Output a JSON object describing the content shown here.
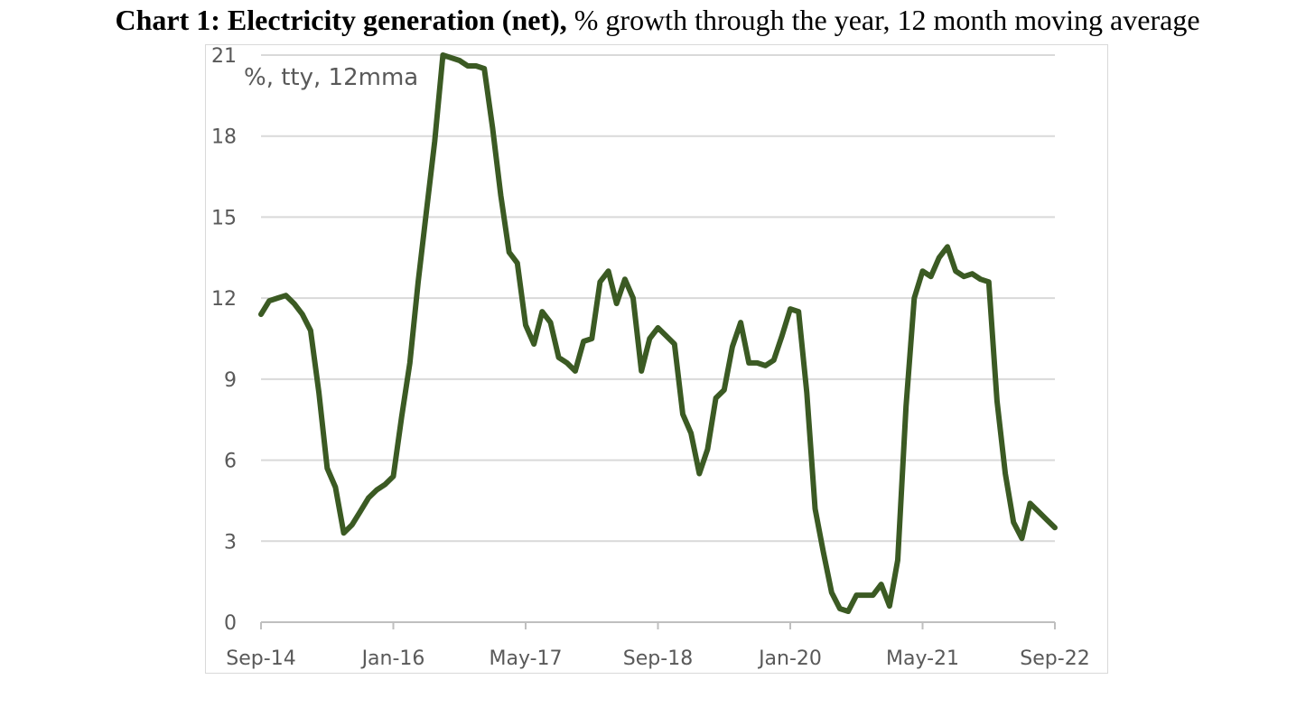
{
  "header": {
    "title_bold": "Chart 1: Electricity generation (net),",
    "title_rest": "% growth through the year, 12 month moving average"
  },
  "chart_data": {
    "type": "line",
    "title": "Chart 1: Electricity generation (net), % growth through the year, 12 month moving average",
    "unit_label": "%, tty, 12mma",
    "x_tick_labels": [
      "Sep-14",
      "Jan-16",
      "May-17",
      "Sep-18",
      "Jan-20",
      "May-21",
      "Sep-22"
    ],
    "x_tick_dates": [
      "2014-09",
      "2016-01",
      "2017-05",
      "2018-09",
      "2020-01",
      "2021-05",
      "2022-09"
    ],
    "y_ticks": [
      0,
      3,
      6,
      9,
      12,
      15,
      18,
      21
    ],
    "ylim": [
      0,
      21
    ],
    "xlim": [
      "2014-09",
      "2022-09"
    ],
    "grid": "horizontal",
    "line_color": "#3b5a23",
    "series": [
      {
        "x": [
          "2014-09",
          "2014-10",
          "2014-11",
          "2014-12",
          "2015-01",
          "2015-02",
          "2015-03",
          "2015-04",
          "2015-05",
          "2015-06",
          "2015-07",
          "2015-08",
          "2015-09",
          "2015-10",
          "2015-11",
          "2015-12",
          "2016-01",
          "2016-02",
          "2016-03",
          "2016-04",
          "2016-05",
          "2016-06",
          "2016-07",
          "2016-08",
          "2016-09",
          "2016-10",
          "2016-11",
          "2016-12",
          "2017-01",
          "2017-02",
          "2017-03",
          "2017-04",
          "2017-05",
          "2017-06",
          "2017-07",
          "2017-08",
          "2017-09",
          "2017-10",
          "2017-11",
          "2017-12",
          "2018-01",
          "2018-02",
          "2018-03",
          "2018-04",
          "2018-05",
          "2018-06",
          "2018-07",
          "2018-08",
          "2018-09",
          "2018-10",
          "2018-11",
          "2018-12",
          "2019-01",
          "2019-02",
          "2019-03",
          "2019-04",
          "2019-05",
          "2019-06",
          "2019-07",
          "2019-08",
          "2019-09",
          "2019-10",
          "2019-11",
          "2019-12",
          "2020-01",
          "2020-02",
          "2020-03",
          "2020-04",
          "2020-05",
          "2020-06",
          "2020-07",
          "2020-08",
          "2020-09",
          "2020-10",
          "2020-11",
          "2020-12",
          "2021-01",
          "2021-02",
          "2021-03",
          "2021-04",
          "2021-05",
          "2021-06",
          "2021-07",
          "2021-08",
          "2021-09",
          "2021-10",
          "2021-11",
          "2021-12",
          "2022-01",
          "2022-02",
          "2022-03",
          "2022-04",
          "2022-05",
          "2022-06",
          "2022-07",
          "2022-08",
          "2022-09"
        ],
        "values": [
          11.4,
          11.9,
          12.0,
          12.1,
          11.8,
          11.4,
          10.8,
          8.5,
          5.7,
          5.0,
          3.3,
          3.6,
          4.1,
          4.6,
          4.9,
          5.1,
          5.4,
          7.6,
          9.6,
          12.6,
          15.2,
          17.8,
          21.0,
          20.9,
          20.8,
          20.6,
          20.6,
          20.5,
          18.3,
          15.8,
          13.7,
          13.3,
          11.0,
          10.3,
          11.5,
          11.1,
          9.8,
          9.6,
          9.3,
          10.4,
          10.5,
          12.6,
          13.0,
          11.8,
          12.7,
          12.0,
          9.3,
          10.5,
          10.9,
          10.6,
          10.3,
          7.7,
          7.0,
          5.5,
          6.4,
          8.3,
          8.6,
          10.2,
          11.1,
          9.6,
          9.6,
          9.5,
          9.7,
          10.6,
          11.6,
          11.5,
          8.5,
          4.2,
          2.6,
          1.1,
          0.5,
          0.4,
          1.0,
          1.0,
          1.0,
          1.4,
          0.6,
          2.3,
          8.0,
          12.0,
          13.0,
          12.8,
          13.5,
          13.9,
          13.0,
          12.8,
          12.9,
          12.7,
          12.6,
          8.2,
          5.5,
          3.7,
          3.1,
          4.4,
          4.1,
          3.8,
          3.5
        ]
      }
    ]
  }
}
